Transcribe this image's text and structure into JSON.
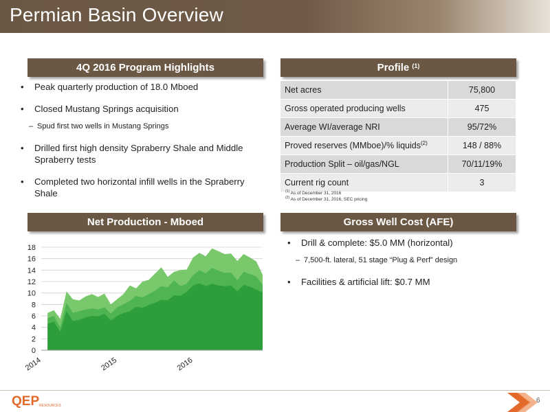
{
  "title": "Permian Basin Overview",
  "highlights": {
    "heading": "4Q 2016 Program Highlights",
    "items": [
      {
        "kind": "main",
        "text": "Peak quarterly production of 18.0 Mboed"
      },
      {
        "kind": "main",
        "text": "Closed Mustang Springs acquisition"
      },
      {
        "kind": "sub",
        "text": "Spud first two wells in Mustang Springs"
      },
      {
        "kind": "main",
        "text": "Drilled first high density Spraberry Shale and Middle Spraberry tests"
      },
      {
        "kind": "main",
        "text": "Completed two horizontal infill wells in the Spraberry Shale"
      }
    ]
  },
  "profile": {
    "heading": "Profile",
    "heading_sup": "(1)",
    "rows": [
      {
        "label": "Net acres",
        "value": "75,800"
      },
      {
        "label": "Gross operated producing wells",
        "value": "475"
      },
      {
        "label": "Average WI/average NRI",
        "value": "95/72%"
      },
      {
        "label": "Proved reserves (MMboe)/% liquids",
        "label_sup": "(2)",
        "value": "148 / 88%"
      },
      {
        "label": "Production Split – oil/gas/NGL",
        "value": "70/11/19%"
      },
      {
        "label": "Current rig count",
        "value": "3"
      }
    ],
    "footnotes": [
      {
        "mark": "(1)",
        "text": "As of December 31, 2016"
      },
      {
        "mark": "(2)",
        "text": "As of December 31, 2016, SEC pricing"
      }
    ]
  },
  "production": {
    "heading": "Net Production - Mboed"
  },
  "well_cost": {
    "heading": "Gross Well Cost (AFE)",
    "items": [
      {
        "kind": "main",
        "text": "Drill & complete: $5.0 MM (horizontal)"
      },
      {
        "kind": "sub",
        "text": "7,500-ft. lateral, 51 stage “Plug & Perf” design"
      },
      {
        "kind": "main",
        "text": "Facilities & artificial lift: $0.7 MM"
      }
    ]
  },
  "footer": {
    "page_number": "6",
    "logo_text": "QEP",
    "logo_sub": "RESOURCES"
  },
  "chart_data": {
    "type": "area",
    "x": [
      "2014-02",
      "2014-03",
      "2014-04",
      "2014-05",
      "2014-06",
      "2014-07",
      "2014-08",
      "2014-09",
      "2014-10",
      "2014-11",
      "2014-12",
      "2015-01",
      "2015-02",
      "2015-03",
      "2015-04",
      "2015-05",
      "2015-06",
      "2015-07",
      "2015-08",
      "2015-09",
      "2015-10",
      "2015-11",
      "2015-12",
      "2016-01",
      "2016-02",
      "2016-03",
      "2016-04",
      "2016-05",
      "2016-06",
      "2016-07",
      "2016-08",
      "2016-09",
      "2016-10",
      "2016-11",
      "2016-12"
    ],
    "series": [
      {
        "values": [
          4.6,
          5.0,
          3.2,
          6.8,
          5.1,
          5.3,
          5.7,
          6.0,
          5.9,
          6.4,
          5.2,
          6.0,
          6.5,
          6.8,
          7.6,
          7.4,
          7.9,
          8.3,
          8.8,
          8.7,
          9.6,
          9.5,
          10.2,
          11.3,
          11.7,
          11.2,
          11.6,
          11.3,
          11.2,
          11.3,
          10.3,
          11.4,
          11.1,
          10.6,
          10.1
        ]
      },
      {
        "values": [
          5.6,
          6.0,
          4.0,
          8.3,
          6.5,
          6.8,
          7.1,
          7.3,
          7.1,
          7.5,
          6.4,
          7.5,
          8.0,
          8.6,
          9.5,
          9.2,
          9.8,
          10.4,
          11.2,
          11.0,
          12.2,
          11.2,
          11.6,
          13.1,
          14.0,
          13.4,
          14.4,
          13.9,
          13.5,
          13.6,
          12.2,
          13.7,
          13.3,
          12.9,
          11.4
        ]
      },
      {
        "values": [
          6.5,
          7.0,
          5.5,
          10.3,
          8.9,
          8.7,
          9.4,
          9.8,
          9.3,
          9.9,
          8.0,
          8.9,
          9.8,
          11.3,
          10.8,
          12.0,
          12.3,
          13.4,
          14.5,
          12.8,
          13.7,
          14.0,
          14.1,
          16.2,
          17.0,
          16.4,
          17.8,
          17.3,
          16.8,
          16.9,
          15.6,
          16.8,
          16.2,
          15.5,
          13.2
        ]
      }
    ],
    "colors": [
      "#2e9e3c",
      "#4fb552",
      "#79c86c"
    ],
    "ylim": [
      0,
      18
    ],
    "yticks": [
      0,
      2,
      4,
      6,
      8,
      10,
      12,
      14,
      16,
      18
    ],
    "xticks": [
      {
        "label": "2014",
        "at": "2014-01"
      },
      {
        "label": "2015",
        "at": "2015-01"
      },
      {
        "label": "2016",
        "at": "2016-01"
      }
    ]
  }
}
